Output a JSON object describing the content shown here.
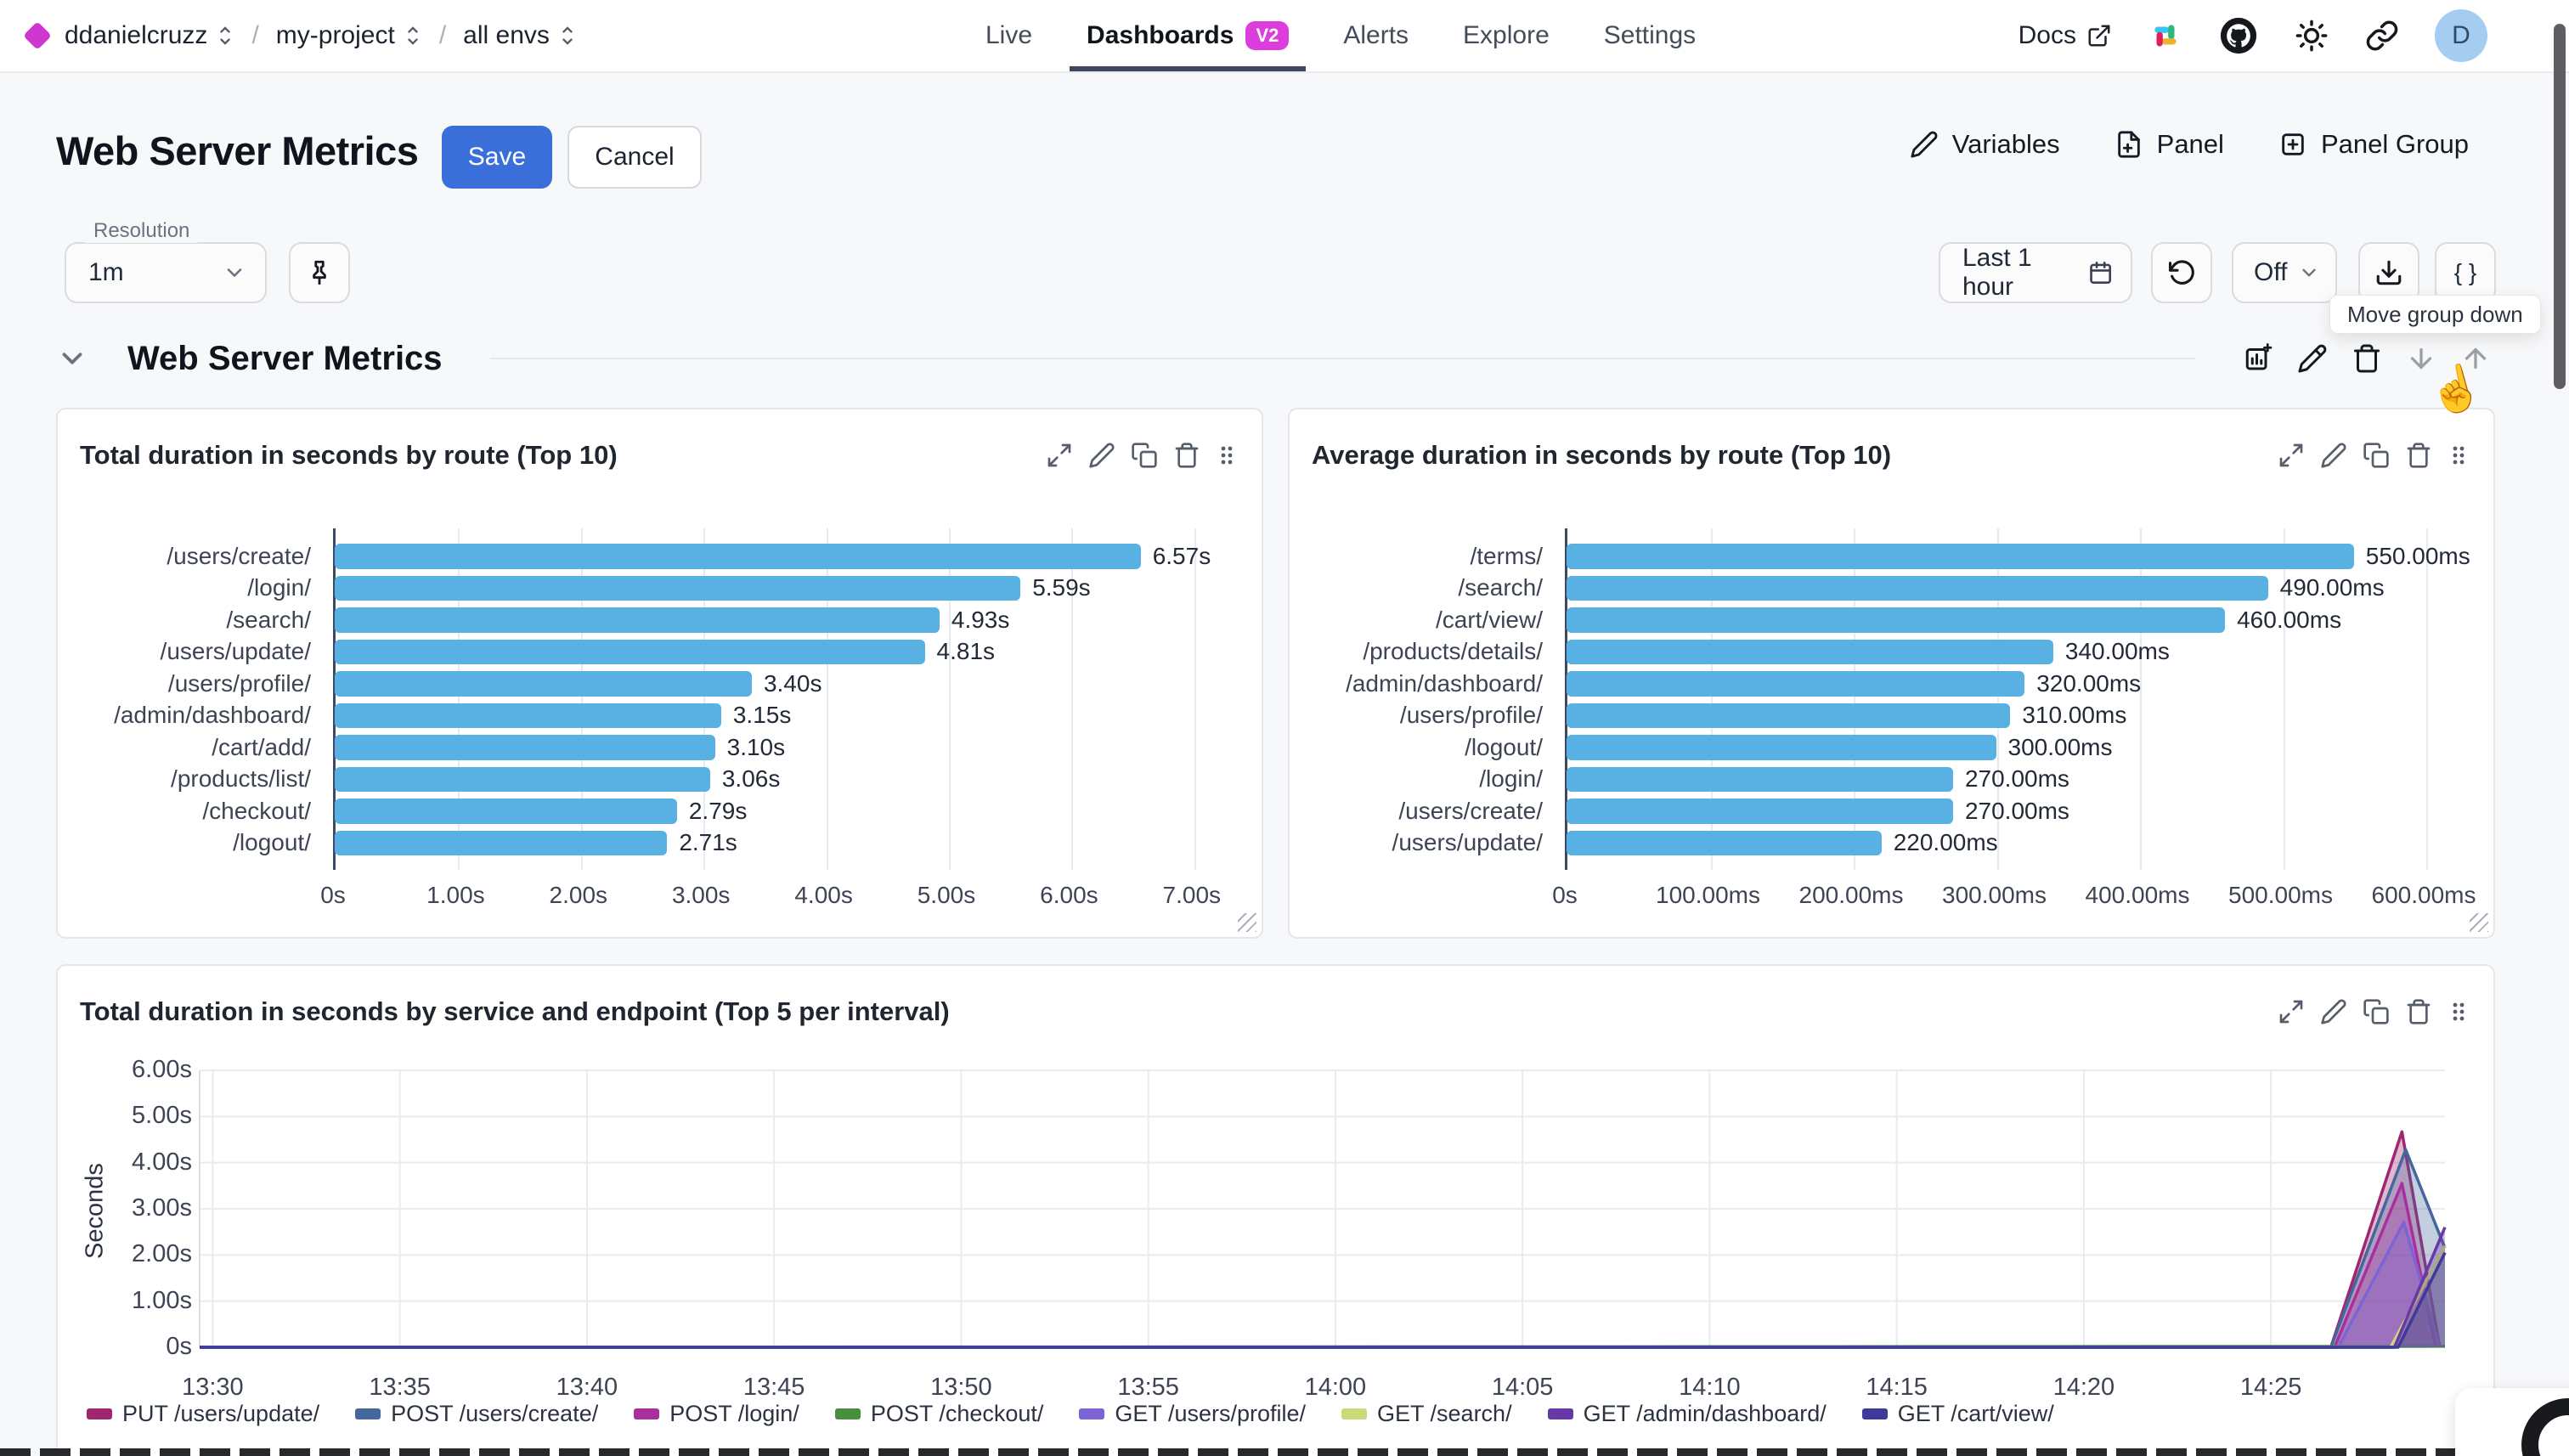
{
  "topbar": {
    "breadcrumb": [
      {
        "label": "ddanielcruzz"
      },
      {
        "label": "my-project"
      },
      {
        "label": "all envs"
      }
    ],
    "nav": [
      {
        "label": "Live"
      },
      {
        "label": "Dashboards",
        "badge": "V2",
        "active": true
      },
      {
        "label": "Alerts"
      },
      {
        "label": "Explore"
      },
      {
        "label": "Settings"
      }
    ],
    "docs_label": "Docs",
    "avatar_initial": "D"
  },
  "header": {
    "title": "Web Server Metrics",
    "save_label": "Save",
    "cancel_label": "Cancel",
    "variables_label": "Variables",
    "panel_label": "Panel",
    "panel_group_label": "Panel Group"
  },
  "controls": {
    "resolution_label": "Resolution",
    "resolution_value": "1m",
    "time_range": "Last 1 hour",
    "auto_refresh_value": "Off",
    "braces_label": "{ }"
  },
  "tooltip": "Move group down",
  "group": {
    "title": "Web Server Metrics"
  },
  "colors": {
    "accent_blue": "#3a6fd9",
    "bar_blue": "#58b0e3",
    "badge_magenta": "#dc3ddc",
    "nav_underline": "#3e4759"
  },
  "chart_data": [
    {
      "type": "bar",
      "orientation": "horizontal",
      "title": "Total duration in seconds by route (Top 10)",
      "categories": [
        "/users/create/",
        "/login/",
        "/search/",
        "/users/update/",
        "/users/profile/",
        "/admin/dashboard/",
        "/cart/add/",
        "/products/list/",
        "/checkout/",
        "/logout/"
      ],
      "values": [
        6.57,
        5.59,
        4.93,
        4.81,
        3.4,
        3.15,
        3.1,
        3.06,
        2.79,
        2.71
      ],
      "value_labels": [
        "6.57s",
        "5.59s",
        "4.93s",
        "4.81s",
        "3.40s",
        "3.15s",
        "3.10s",
        "3.06s",
        "2.79s",
        "2.71s"
      ],
      "x_ticks": [
        "0s",
        "1.00s",
        "2.00s",
        "3.00s",
        "4.00s",
        "5.00s",
        "6.00s",
        "7.00s"
      ],
      "x_tick_values": [
        0,
        1,
        2,
        3,
        4,
        5,
        6,
        7
      ],
      "xlim": [
        0,
        7.41
      ]
    },
    {
      "type": "bar",
      "orientation": "horizontal",
      "title": "Average duration in seconds by route (Top 10)",
      "categories": [
        "/terms/",
        "/search/",
        "/cart/view/",
        "/products/details/",
        "/admin/dashboard/",
        "/users/profile/",
        "/logout/",
        "/login/",
        "/users/create/",
        "/users/update/"
      ],
      "values": [
        550,
        490,
        460,
        340,
        320,
        310,
        300,
        270,
        270,
        220
      ],
      "value_labels": [
        "550.00ms",
        "490.00ms",
        "460.00ms",
        "340.00ms",
        "320.00ms",
        "310.00ms",
        "300.00ms",
        "270.00ms",
        "270.00ms",
        "220.00ms"
      ],
      "x_ticks": [
        "0s",
        "100.00ms",
        "200.00ms",
        "300.00ms",
        "400.00ms",
        "500.00ms",
        "600.00ms"
      ],
      "x_tick_values": [
        0,
        100,
        200,
        300,
        400,
        500,
        600
      ],
      "xlim": [
        0,
        635
      ]
    },
    {
      "type": "area",
      "title": "Total duration in seconds by service and endpoint (Top 5 per interval)",
      "ylabel": "Seconds",
      "y_ticks": [
        "0s",
        "1.00s",
        "2.00s",
        "3.00s",
        "4.00s",
        "5.00s",
        "6.00s"
      ],
      "y_tick_values": [
        0,
        1,
        2,
        3,
        4,
        5,
        6
      ],
      "ylim": [
        0,
        6
      ],
      "x_ticks": [
        "13:30",
        "13:35",
        "13:40",
        "13:45",
        "13:50",
        "13:55",
        "14:00",
        "14:05",
        "14:10",
        "14:15",
        "14:20",
        "14:25"
      ],
      "x_tick_minutes": [
        0,
        5,
        10,
        15,
        20,
        25,
        30,
        35,
        40,
        45,
        50,
        55
      ],
      "xlim_minutes": [
        -0.35,
        59.65
      ],
      "series": [
        {
          "name": "PUT /users/update/",
          "color": "#a02670",
          "points": [
            [
              -0.35,
              0
            ],
            [
              56.6,
              0
            ],
            [
              58.5,
              4.67
            ],
            [
              59.5,
              0.05
            ]
          ]
        },
        {
          "name": "POST /users/create/",
          "color": "#45679c",
          "points": [
            [
              -0.35,
              0
            ],
            [
              56.6,
              0
            ],
            [
              58.6,
              4.28
            ],
            [
              59.65,
              2.15
            ]
          ]
        },
        {
          "name": "POST /login/",
          "color": "#a9309c",
          "points": [
            [
              -0.35,
              0
            ],
            [
              56.7,
              0
            ],
            [
              58.5,
              3.55
            ],
            [
              59.4,
              0.02
            ]
          ]
        },
        {
          "name": "POST /checkout/",
          "color": "#478f3c",
          "points": [
            [
              -0.35,
              0
            ],
            [
              59.65,
              0.02
            ]
          ]
        },
        {
          "name": "GET /users/profile/",
          "color": "#7c64d5",
          "points": [
            [
              -0.35,
              0
            ],
            [
              56.8,
              0
            ],
            [
              58.55,
              2.71
            ],
            [
              59.5,
              0.03
            ]
          ]
        },
        {
          "name": "GET /search/",
          "color": "#cdd978",
          "points": [
            [
              -0.35,
              0
            ],
            [
              58.2,
              0
            ],
            [
              59.65,
              2.2
            ]
          ]
        },
        {
          "name": "GET /admin/dashboard/",
          "color": "#6837a8",
          "points": [
            [
              -0.35,
              0
            ],
            [
              58.3,
              0
            ],
            [
              59.65,
              2.6
            ]
          ]
        },
        {
          "name": "GET /cart/view/",
          "color": "#3d3a99",
          "points": [
            [
              -0.35,
              0
            ],
            [
              58.4,
              0
            ],
            [
              59.65,
              2.05
            ]
          ]
        }
      ]
    }
  ]
}
